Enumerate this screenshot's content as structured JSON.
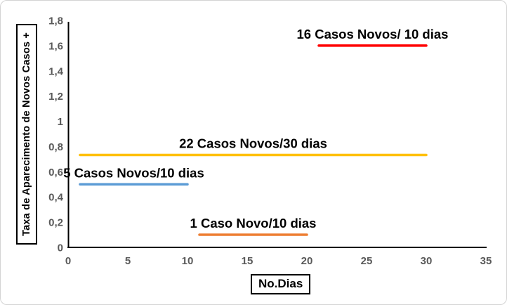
{
  "chart_data": {
    "type": "line",
    "title": "",
    "xlabel": "No.Dias",
    "ylabel": "Taxa de Aparecimento de Novos Casos +",
    "xlim": [
      0,
      35
    ],
    "ylim": [
      0,
      1.8
    ],
    "grid": false,
    "legend": "none",
    "x_ticks": {
      "values": [
        0,
        5,
        10,
        15,
        20,
        25,
        30,
        35
      ],
      "labels": [
        "0",
        "5",
        "10",
        "15",
        "20",
        "25",
        "30",
        "35"
      ]
    },
    "y_ticks": {
      "values": [
        0,
        0.2,
        0.4,
        0.6,
        0.8,
        1,
        1.2,
        1.4,
        1.6,
        1.8
      ],
      "labels": [
        "0",
        "0,2",
        "0,4",
        "0,6",
        "0,8",
        "1",
        "1,2",
        "1,4",
        "1,6",
        "1,8"
      ]
    },
    "series": [
      {
        "name": "16-casos-novos-10-dias",
        "label": "16 Casos Novos/ 10 dias",
        "color": "#FF0000",
        "x": [
          21,
          30
        ],
        "y": [
          1.6,
          1.6
        ]
      },
      {
        "name": "22-casos-novos-30-dias",
        "label": "22 Casos Novos/30 dias",
        "color": "#FFC000",
        "x": [
          1,
          30
        ],
        "y": [
          0.733,
          0.733
        ]
      },
      {
        "name": "5-casos-novos-10-dias",
        "label": "5 Casos Novos/10 dias",
        "color": "#5B9BD5",
        "x": [
          1,
          10
        ],
        "y": [
          0.5,
          0.5
        ]
      },
      {
        "name": "1-caso-novo-10-dias",
        "label": "1 Caso Novo/10 dias",
        "color": "#ED7D31",
        "x": [
          11,
          20
        ],
        "y": [
          0.1,
          0.1
        ]
      }
    ],
    "colors": {
      "axis_line": "#000000",
      "tick_label": "#595959",
      "series_label_text": "#000000"
    }
  }
}
